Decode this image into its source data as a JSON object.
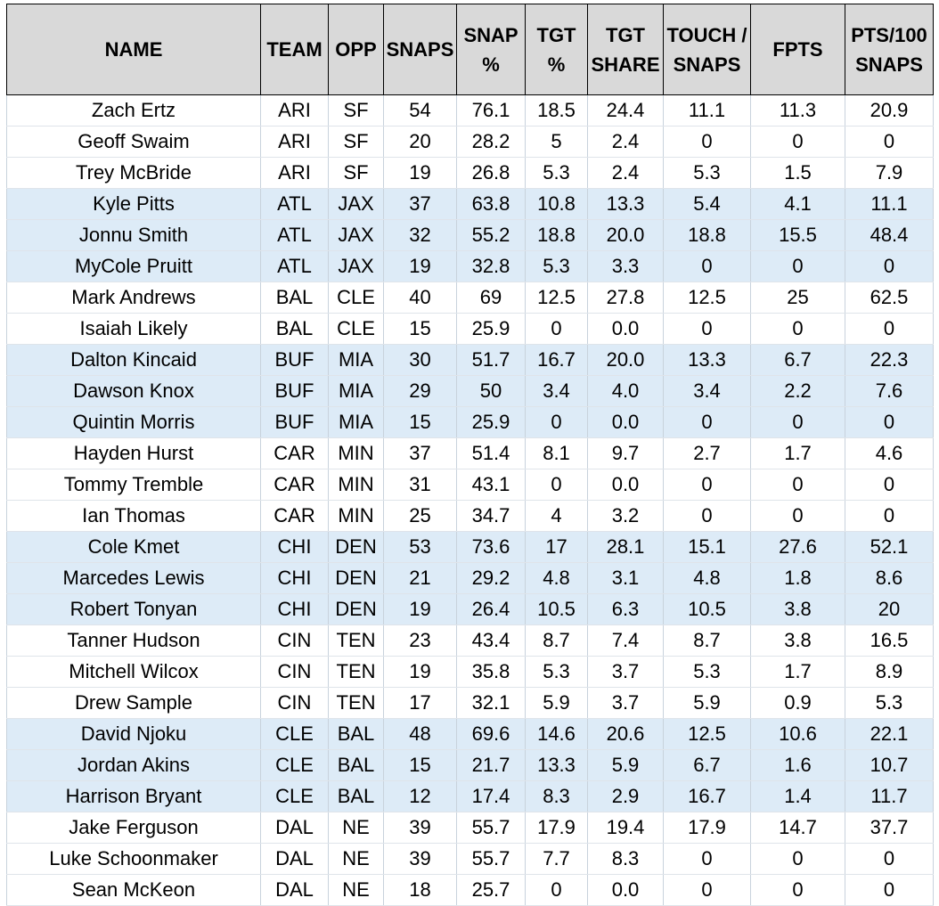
{
  "colors": {
    "header_bg": "#d9d9d9",
    "band_bg": "#ddebf7",
    "plain_bg": "#ffffff"
  },
  "headers": [
    "NAME",
    "TEAM",
    "OPP",
    "SNAPS",
    "SNAP %",
    "TGT %",
    "TGT SHARE",
    "TOUCH / SNAPS",
    "FPTS",
    "PTS/100 SNAPS"
  ],
  "rows": [
    {
      "band": false,
      "cells": [
        "Zach Ertz",
        "ARI",
        "SF",
        "54",
        "76.1",
        "18.5",
        "24.4",
        "11.1",
        "11.3",
        "20.9"
      ]
    },
    {
      "band": false,
      "cells": [
        "Geoff Swaim",
        "ARI",
        "SF",
        "20",
        "28.2",
        "5",
        "2.4",
        "0",
        "0",
        "0"
      ]
    },
    {
      "band": false,
      "cells": [
        "Trey McBride",
        "ARI",
        "SF",
        "19",
        "26.8",
        "5.3",
        "2.4",
        "5.3",
        "1.5",
        "7.9"
      ]
    },
    {
      "band": true,
      "cells": [
        "Kyle Pitts",
        "ATL",
        "JAX",
        "37",
        "63.8",
        "10.8",
        "13.3",
        "5.4",
        "4.1",
        "11.1"
      ]
    },
    {
      "band": true,
      "cells": [
        "Jonnu Smith",
        "ATL",
        "JAX",
        "32",
        "55.2",
        "18.8",
        "20.0",
        "18.8",
        "15.5",
        "48.4"
      ]
    },
    {
      "band": true,
      "cells": [
        "MyCole Pruitt",
        "ATL",
        "JAX",
        "19",
        "32.8",
        "5.3",
        "3.3",
        "0",
        "0",
        "0"
      ]
    },
    {
      "band": false,
      "cells": [
        "Mark Andrews",
        "BAL",
        "CLE",
        "40",
        "69",
        "12.5",
        "27.8",
        "12.5",
        "25",
        "62.5"
      ]
    },
    {
      "band": false,
      "cells": [
        "Isaiah Likely",
        "BAL",
        "CLE",
        "15",
        "25.9",
        "0",
        "0.0",
        "0",
        "0",
        "0"
      ]
    },
    {
      "band": true,
      "cells": [
        "Dalton Kincaid",
        "BUF",
        "MIA",
        "30",
        "51.7",
        "16.7",
        "20.0",
        "13.3",
        "6.7",
        "22.3"
      ]
    },
    {
      "band": true,
      "cells": [
        "Dawson Knox",
        "BUF",
        "MIA",
        "29",
        "50",
        "3.4",
        "4.0",
        "3.4",
        "2.2",
        "7.6"
      ]
    },
    {
      "band": true,
      "cells": [
        "Quintin Morris",
        "BUF",
        "MIA",
        "15",
        "25.9",
        "0",
        "0.0",
        "0",
        "0",
        "0"
      ]
    },
    {
      "band": false,
      "cells": [
        "Hayden Hurst",
        "CAR",
        "MIN",
        "37",
        "51.4",
        "8.1",
        "9.7",
        "2.7",
        "1.7",
        "4.6"
      ]
    },
    {
      "band": false,
      "cells": [
        "Tommy Tremble",
        "CAR",
        "MIN",
        "31",
        "43.1",
        "0",
        "0.0",
        "0",
        "0",
        "0"
      ]
    },
    {
      "band": false,
      "cells": [
        "Ian Thomas",
        "CAR",
        "MIN",
        "25",
        "34.7",
        "4",
        "3.2",
        "0",
        "0",
        "0"
      ]
    },
    {
      "band": true,
      "cells": [
        "Cole Kmet",
        "CHI",
        "DEN",
        "53",
        "73.6",
        "17",
        "28.1",
        "15.1",
        "27.6",
        "52.1"
      ]
    },
    {
      "band": true,
      "cells": [
        "Marcedes Lewis",
        "CHI",
        "DEN",
        "21",
        "29.2",
        "4.8",
        "3.1",
        "4.8",
        "1.8",
        "8.6"
      ]
    },
    {
      "band": true,
      "cells": [
        "Robert Tonyan",
        "CHI",
        "DEN",
        "19",
        "26.4",
        "10.5",
        "6.3",
        "10.5",
        "3.8",
        "20"
      ]
    },
    {
      "band": false,
      "cells": [
        "Tanner Hudson",
        "CIN",
        "TEN",
        "23",
        "43.4",
        "8.7",
        "7.4",
        "8.7",
        "3.8",
        "16.5"
      ]
    },
    {
      "band": false,
      "cells": [
        "Mitchell Wilcox",
        "CIN",
        "TEN",
        "19",
        "35.8",
        "5.3",
        "3.7",
        "5.3",
        "1.7",
        "8.9"
      ]
    },
    {
      "band": false,
      "cells": [
        "Drew Sample",
        "CIN",
        "TEN",
        "17",
        "32.1",
        "5.9",
        "3.7",
        "5.9",
        "0.9",
        "5.3"
      ]
    },
    {
      "band": true,
      "cells": [
        "David Njoku",
        "CLE",
        "BAL",
        "48",
        "69.6",
        "14.6",
        "20.6",
        "12.5",
        "10.6",
        "22.1"
      ]
    },
    {
      "band": true,
      "cells": [
        "Jordan Akins",
        "CLE",
        "BAL",
        "15",
        "21.7",
        "13.3",
        "5.9",
        "6.7",
        "1.6",
        "10.7"
      ]
    },
    {
      "band": true,
      "cells": [
        "Harrison Bryant",
        "CLE",
        "BAL",
        "12",
        "17.4",
        "8.3",
        "2.9",
        "16.7",
        "1.4",
        "11.7"
      ]
    },
    {
      "band": false,
      "cells": [
        "Jake Ferguson",
        "DAL",
        "NE",
        "39",
        "55.7",
        "17.9",
        "19.4",
        "17.9",
        "14.7",
        "37.7"
      ]
    },
    {
      "band": false,
      "cells": [
        "Luke Schoonmaker",
        "DAL",
        "NE",
        "39",
        "55.7",
        "7.7",
        "8.3",
        "0",
        "0",
        "0"
      ]
    },
    {
      "band": false,
      "cells": [
        "Sean McKeon",
        "DAL",
        "NE",
        "18",
        "25.7",
        "0",
        "0.0",
        "0",
        "0",
        "0"
      ]
    }
  ]
}
